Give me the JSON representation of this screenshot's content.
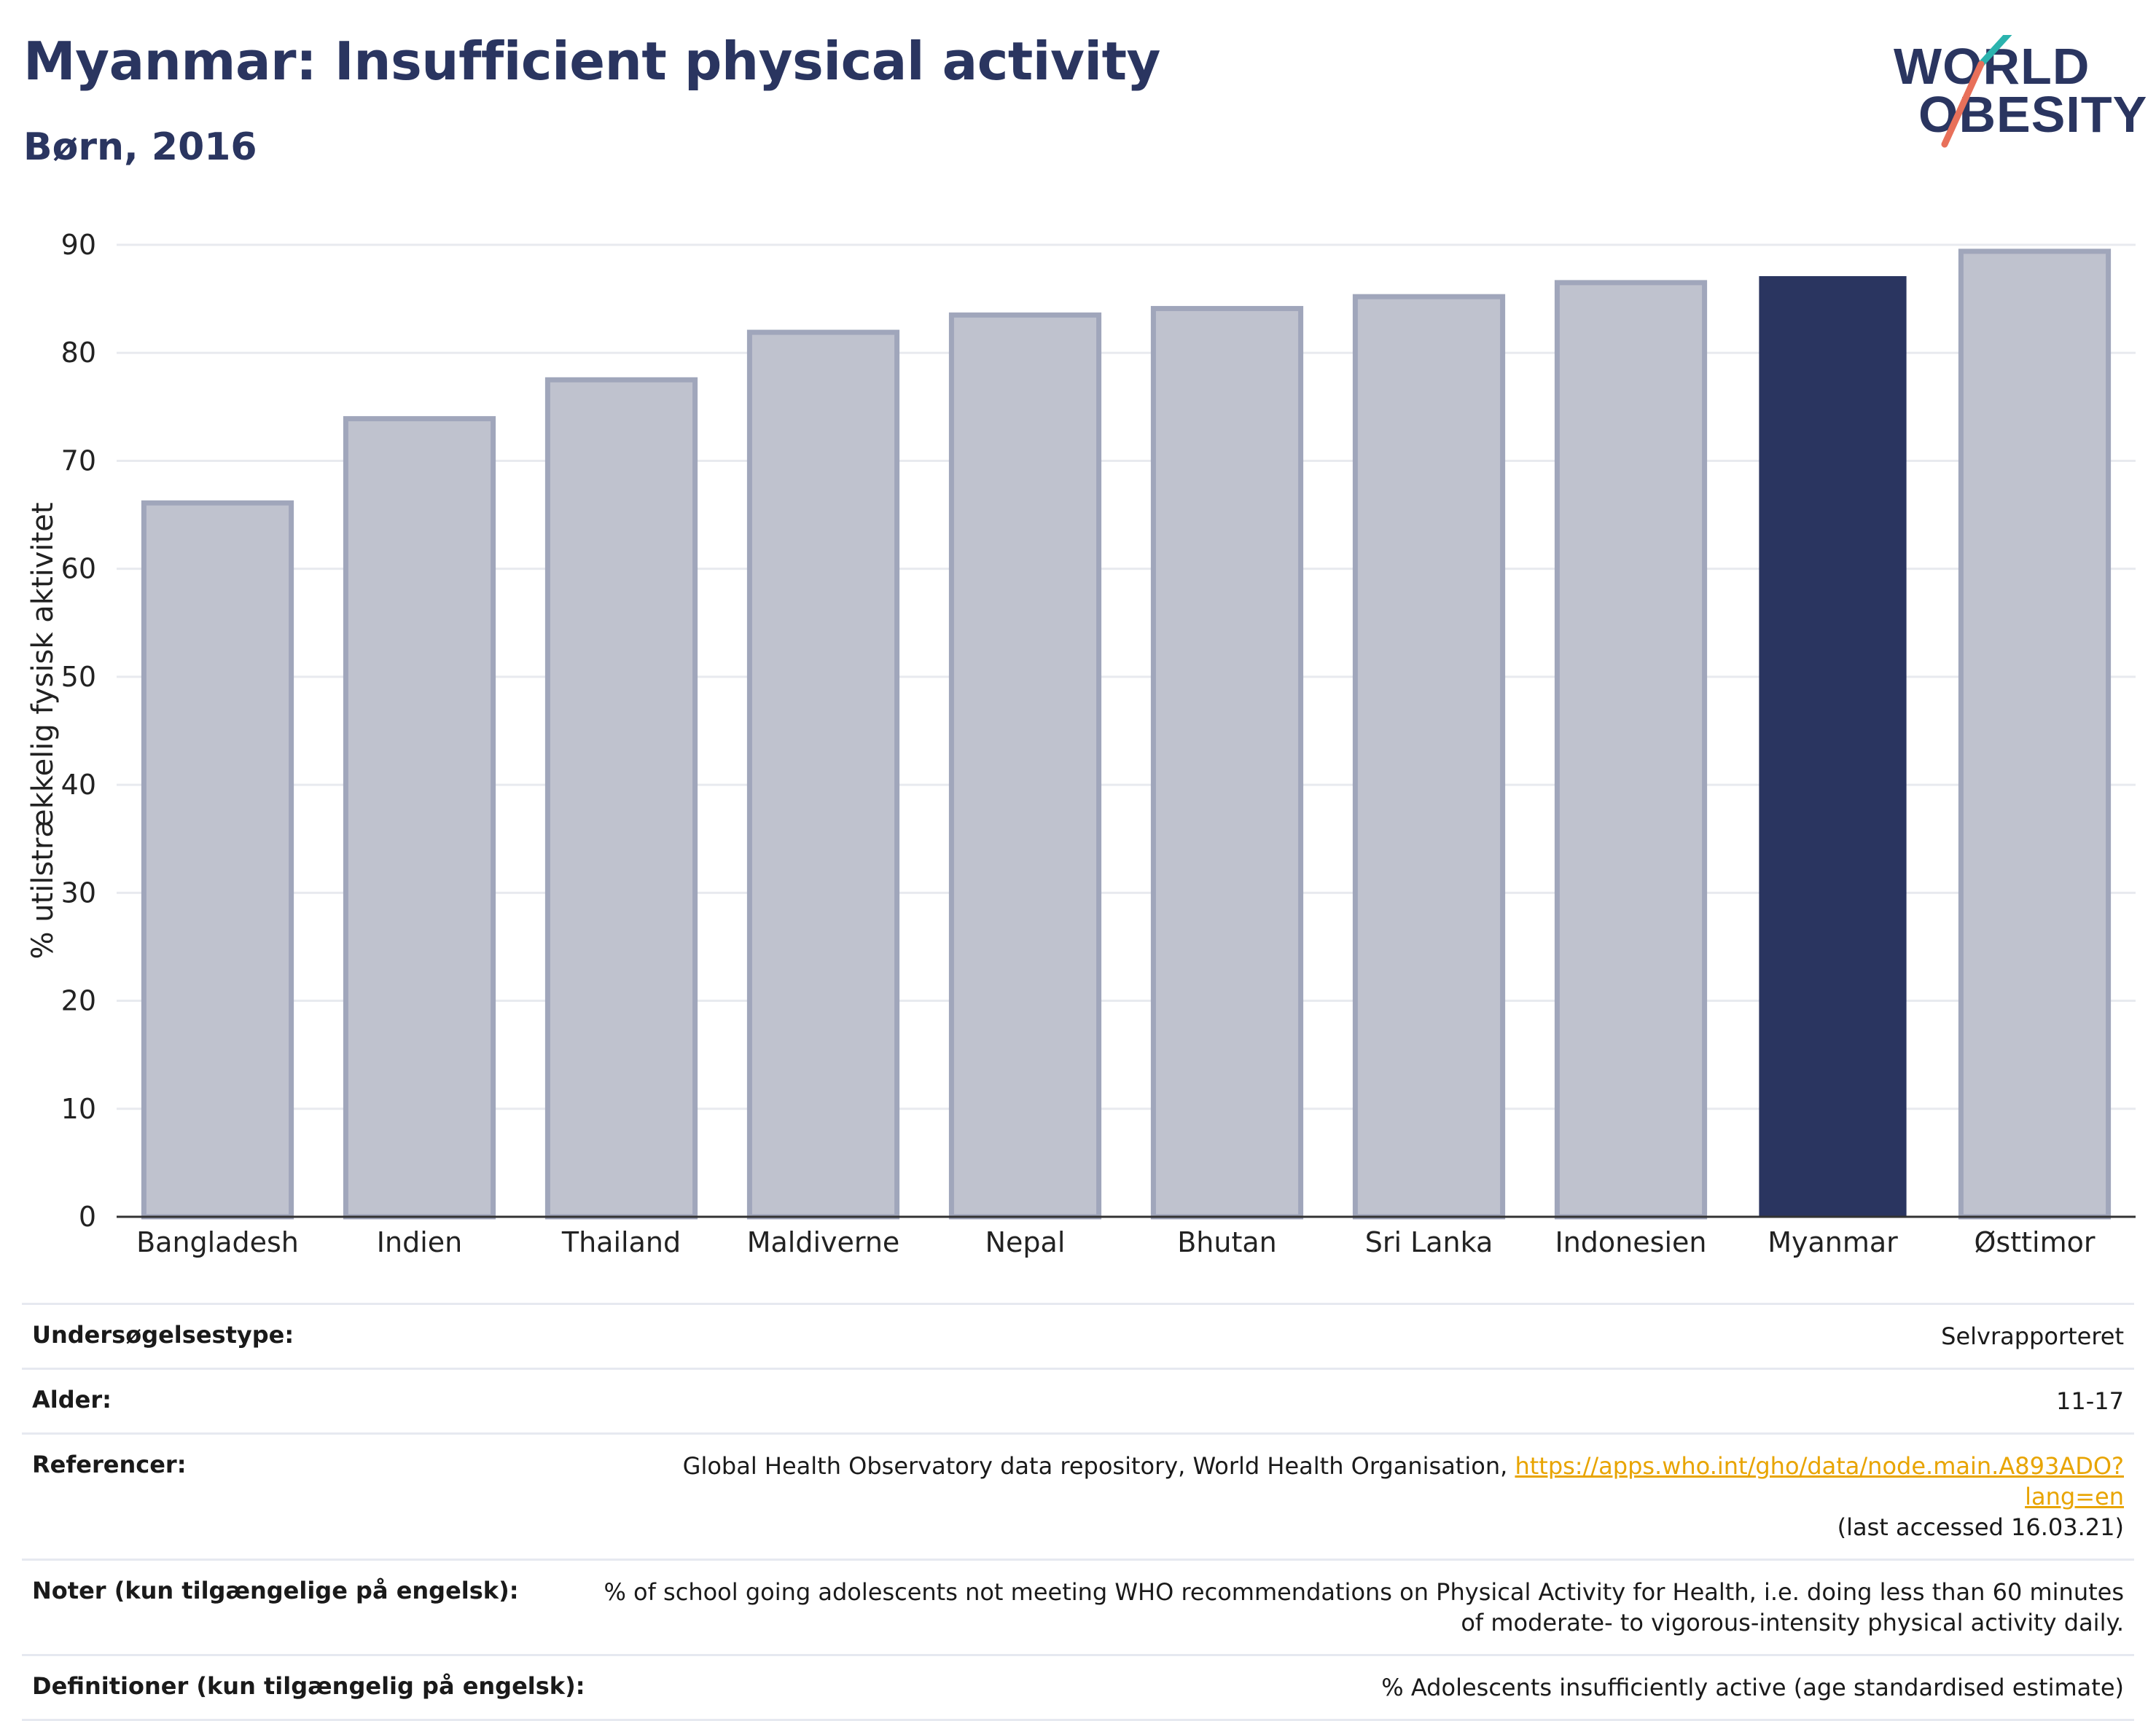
{
  "header": {
    "title": "Myanmar: Insufficient physical activity",
    "subtitle": "Børn, 2016"
  },
  "logo": {
    "line1": "WORLD",
    "line2": "OBESITY"
  },
  "colors": {
    "highlight": "#2a3560",
    "bar": "#bfc2ce",
    "bar_border": "#a0a6bb",
    "accent_teal": "#2bb3ae",
    "accent_coral": "#e8705a"
  },
  "chart_data": {
    "type": "bar",
    "title": "Myanmar: Insufficient physical activity",
    "subtitle": "Børn, 2016",
    "categories": [
      "Bangladesh",
      "Indien",
      "Thailand",
      "Maldiverne",
      "Nepal",
      "Bhutan",
      "Sri Lanka",
      "Indonesien",
      "Myanmar",
      "Østtimor"
    ],
    "values": [
      66.1,
      73.9,
      77.5,
      81.9,
      83.5,
      84.1,
      85.2,
      86.5,
      87.1,
      89.4
    ],
    "highlight": "Myanmar",
    "ylabel": "% utilstrækkelig fysisk aktivitet",
    "xlabel": "",
    "ylim": [
      0,
      90
    ],
    "yticks": [
      0,
      10,
      20,
      30,
      40,
      50,
      60,
      70,
      80,
      90
    ],
    "grid": true
  },
  "info": {
    "rows": [
      {
        "key": "Undersøgelsestype:",
        "value": "Selvrapporteret"
      },
      {
        "key": "Alder:",
        "value": "11-17"
      },
      {
        "key": "Referencer:",
        "value": "Global Health Observatory data repository, World Health Organisation, ",
        "link": "https://apps.who.int/gho/data/node.main.A893ADO?lang=en",
        "value2": "(last accessed 16.03.21)"
      },
      {
        "key": "Noter (kun tilgængelige på engelsk):",
        "value": "% of school going adolescents not meeting WHO recommendations on Physical Activity for Health, i.e. doing less than 60 minutes of moderate- to vigorous-intensity physical activity daily."
      },
      {
        "key": "Definitioner (kun tilgængelig på engelsk):",
        "value": "% Adolescents insufficiently active (age standardised estimate)"
      }
    ]
  }
}
